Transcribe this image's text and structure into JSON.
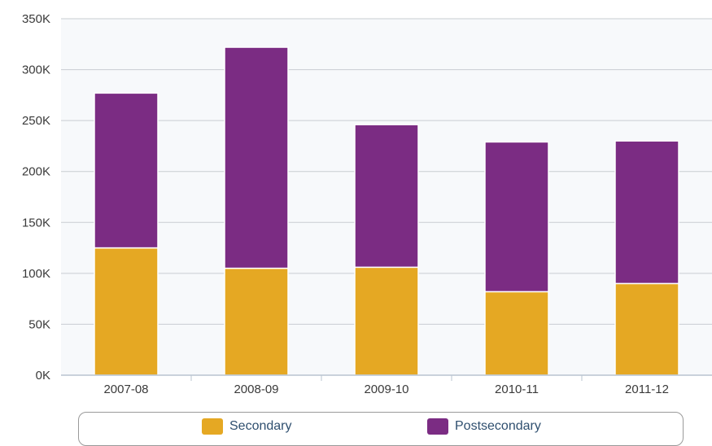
{
  "chart_data": {
    "type": "bar",
    "stacked": true,
    "categories": [
      "2007-08",
      "2008-09",
      "2009-10",
      "2010-11",
      "2011-12"
    ],
    "series": [
      {
        "name": "Secondary",
        "color": "#e5a823",
        "values": [
          125000,
          105000,
          106000,
          82000,
          90000
        ]
      },
      {
        "name": "Postsecondary",
        "color": "#7b2c83",
        "values": [
          152000,
          217000,
          140000,
          147000,
          140000
        ]
      }
    ],
    "ylim": [
      0,
      350000
    ],
    "yticks": [
      0,
      50000,
      100000,
      150000,
      200000,
      250000,
      300000,
      350000
    ],
    "ytick_labels": [
      "0K",
      "50K",
      "100K",
      "150K",
      "200K",
      "250K",
      "300K",
      "350K"
    ],
    "grid": true,
    "legend_position": "bottom"
  }
}
